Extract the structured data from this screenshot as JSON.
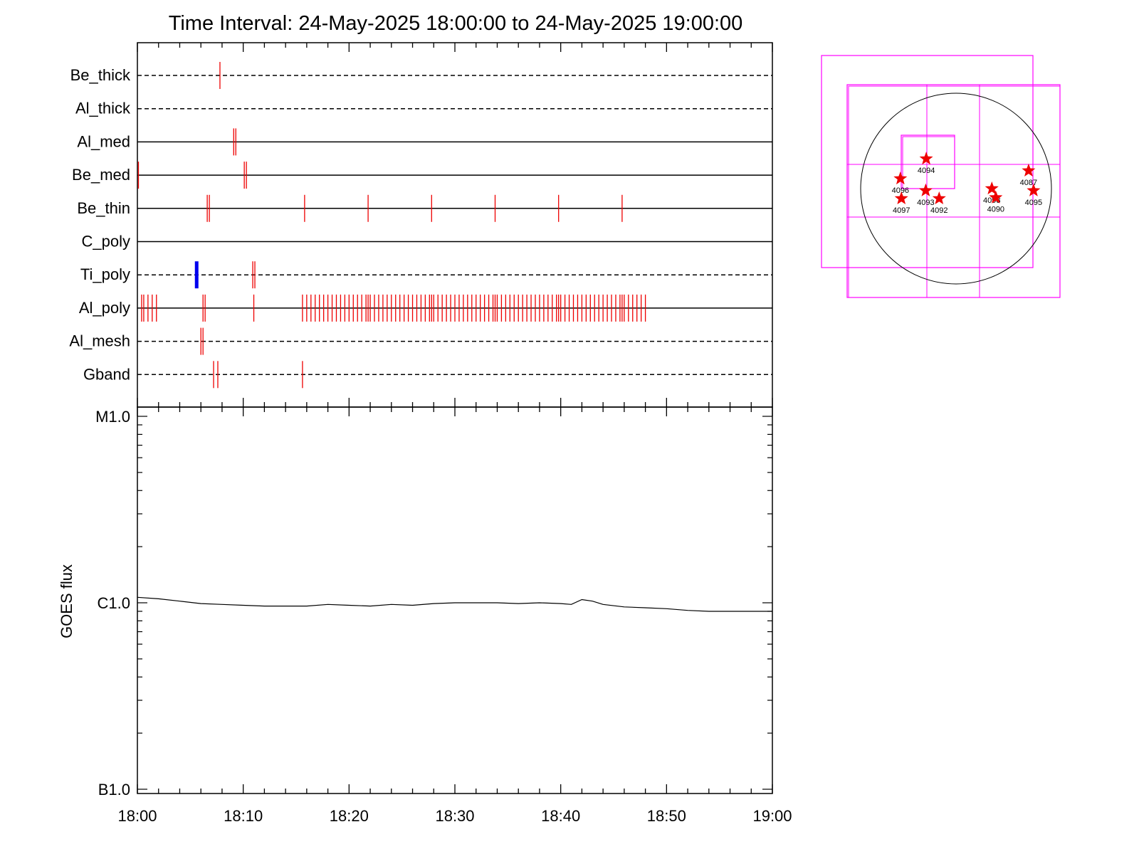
{
  "chart_data": [
    {
      "type": "timeline",
      "title": "Time Interval: 24-May-2025 18:00:00 to 24-May-2025 19:00:00",
      "x_start": "2025-05-24 18:00",
      "x_end": "2025-05-24 19:00",
      "rows": [
        {
          "label": "Be_thick",
          "line": "dashed",
          "events": [
            {
              "t": "18:07.8"
            }
          ]
        },
        {
          "label": "Al_thick",
          "line": "dashed",
          "events": []
        },
        {
          "label": "Al_med",
          "line": "solid",
          "events": [
            {
              "t": "18:09.1"
            },
            {
              "t": "18:09.3"
            }
          ]
        },
        {
          "label": "Be_med",
          "line": "solid",
          "events": [
            {
              "t": "18:00.1"
            },
            {
              "t": "18:10.1"
            },
            {
              "t": "18:10.3"
            }
          ]
        },
        {
          "label": "Be_thin",
          "line": "solid",
          "events": [
            {
              "t": "18:06.6"
            },
            {
              "t": "18:06.8"
            },
            {
              "t": "18:15.8"
            },
            {
              "t": "18:21.8"
            },
            {
              "t": "18:27.8"
            },
            {
              "t": "18:33.8"
            },
            {
              "t": "18:39.8"
            },
            {
              "t": "18:45.8"
            }
          ]
        },
        {
          "label": "C_poly",
          "line": "solid",
          "events": []
        },
        {
          "label": "Ti_poly",
          "line": "dashed",
          "events": [
            {
              "t": "18:05.6",
              "color": "#0000ee",
              "thick": true
            },
            {
              "t": "18:10.9"
            },
            {
              "t": "18:11.1"
            }
          ]
        },
        {
          "label": "Al_poly",
          "line": "solid",
          "events": [
            {
              "t": "18:00.4"
            },
            {
              "t": "18:00.6"
            },
            {
              "t": "18:01.0"
            },
            {
              "t": "18:01.4"
            },
            {
              "t": "18:01.8"
            },
            {
              "t": "18:06.2"
            },
            {
              "t": "18:06.4"
            },
            {
              "t": "18:11.0"
            },
            {
              "t": "18:15.6"
            },
            {
              "t": "18:16.0"
            },
            {
              "t": "18:16.4"
            },
            {
              "t": "18:16.8"
            },
            {
              "t": "18:17.2"
            },
            {
              "t": "18:17.6"
            },
            {
              "t": "18:18.0"
            },
            {
              "t": "18:18.4"
            },
            {
              "t": "18:18.8"
            },
            {
              "t": "18:19.2"
            },
            {
              "t": "18:19.6"
            },
            {
              "t": "18:20.0"
            },
            {
              "t": "18:20.4"
            },
            {
              "t": "18:20.8"
            },
            {
              "t": "18:21.2"
            },
            {
              "t": "18:21.6"
            },
            {
              "t": "18:21.8"
            },
            {
              "t": "18:22.0"
            },
            {
              "t": "18:22.4"
            },
            {
              "t": "18:22.8"
            },
            {
              "t": "18:23.2"
            },
            {
              "t": "18:23.6"
            },
            {
              "t": "18:24.0"
            },
            {
              "t": "18:24.4"
            },
            {
              "t": "18:24.8"
            },
            {
              "t": "18:25.2"
            },
            {
              "t": "18:25.6"
            },
            {
              "t": "18:26.0"
            },
            {
              "t": "18:26.4"
            },
            {
              "t": "18:26.8"
            },
            {
              "t": "18:27.2"
            },
            {
              "t": "18:27.6"
            },
            {
              "t": "18:27.8"
            },
            {
              "t": "18:28.0"
            },
            {
              "t": "18:28.4"
            },
            {
              "t": "18:28.8"
            },
            {
              "t": "18:29.2"
            },
            {
              "t": "18:29.6"
            },
            {
              "t": "18:30.0"
            },
            {
              "t": "18:30.4"
            },
            {
              "t": "18:30.8"
            },
            {
              "t": "18:31.2"
            },
            {
              "t": "18:31.6"
            },
            {
              "t": "18:32.0"
            },
            {
              "t": "18:32.4"
            },
            {
              "t": "18:32.8"
            },
            {
              "t": "18:33.2"
            },
            {
              "t": "18:33.6"
            },
            {
              "t": "18:33.8"
            },
            {
              "t": "18:34.0"
            },
            {
              "t": "18:34.4"
            },
            {
              "t": "18:34.8"
            },
            {
              "t": "18:35.2"
            },
            {
              "t": "18:35.6"
            },
            {
              "t": "18:36.0"
            },
            {
              "t": "18:36.4"
            },
            {
              "t": "18:36.8"
            },
            {
              "t": "18:37.2"
            },
            {
              "t": "18:37.6"
            },
            {
              "t": "18:38.0"
            },
            {
              "t": "18:38.4"
            },
            {
              "t": "18:38.8"
            },
            {
              "t": "18:39.2"
            },
            {
              "t": "18:39.6"
            },
            {
              "t": "18:39.8"
            },
            {
              "t": "18:40.0"
            },
            {
              "t": "18:40.4"
            },
            {
              "t": "18:40.8"
            },
            {
              "t": "18:41.2"
            },
            {
              "t": "18:41.6"
            },
            {
              "t": "18:42.0"
            },
            {
              "t": "18:42.4"
            },
            {
              "t": "18:42.8"
            },
            {
              "t": "18:43.2"
            },
            {
              "t": "18:43.6"
            },
            {
              "t": "18:44.0"
            },
            {
              "t": "18:44.4"
            },
            {
              "t": "18:44.8"
            },
            {
              "t": "18:45.2"
            },
            {
              "t": "18:45.6"
            },
            {
              "t": "18:45.8"
            },
            {
              "t": "18:46.0"
            },
            {
              "t": "18:46.4"
            },
            {
              "t": "18:46.8"
            },
            {
              "t": "18:47.2"
            },
            {
              "t": "18:47.6"
            },
            {
              "t": "18:48.0"
            }
          ]
        },
        {
          "label": "Al_mesh",
          "line": "dashed",
          "events": [
            {
              "t": "18:06.0"
            },
            {
              "t": "18:06.2"
            }
          ]
        },
        {
          "label": "Gband",
          "line": "dashed",
          "events": [
            {
              "t": "18:07.2"
            },
            {
              "t": "18:07.6"
            },
            {
              "t": "18:15.6"
            }
          ]
        }
      ]
    },
    {
      "type": "line",
      "ylabel": "GOES flux",
      "y_scale": "log",
      "ylim": [
        1e-07,
        1e-05
      ],
      "y_ticks": [
        {
          "value": 1e-05,
          "label": "M1.0"
        },
        {
          "value": 1e-06,
          "label": "C1.0"
        },
        {
          "value": 1e-07,
          "label": "B1.0"
        }
      ],
      "x_ticks": [
        "18:00",
        "18:10",
        "18:20",
        "18:30",
        "18:40",
        "18:50",
        "19:00"
      ],
      "series": [
        {
          "color": "#000000",
          "x": [
            "18:00",
            "18:02",
            "18:04",
            "18:06",
            "18:08",
            "18:10",
            "18:12",
            "18:14",
            "18:16",
            "18:18",
            "18:20",
            "18:22",
            "18:24",
            "18:26",
            "18:28",
            "18:30",
            "18:32",
            "18:34",
            "18:36",
            "18:38",
            "18:40",
            "18:41",
            "18:42",
            "18:43",
            "18:44",
            "18:46",
            "18:48",
            "18:50",
            "18:52",
            "18:54",
            "18:56",
            "18:58",
            "19:00"
          ],
          "values": [
            1.07e-06,
            1.05e-06,
            1.02e-06,
            9.9e-07,
            9.8e-07,
            9.7e-07,
            9.6e-07,
            9.6e-07,
            9.6e-07,
            9.8e-07,
            9.7e-07,
            9.6e-07,
            9.8e-07,
            9.7e-07,
            9.9e-07,
            1e-06,
            1e-06,
            1e-06,
            9.9e-07,
            1e-06,
            9.9e-07,
            9.8e-07,
            1.04e-06,
            1.02e-06,
            9.8e-07,
            9.5e-07,
            9.4e-07,
            9.3e-07,
            9.1e-07,
            9e-07,
            9e-07,
            9e-07,
            9e-07
          ]
        }
      ]
    },
    {
      "type": "diagram",
      "regions": [
        {
          "label": "4094",
          "x": -300,
          "y": 300
        },
        {
          "label": "4096",
          "x": -560,
          "y": 100
        },
        {
          "label": "4093",
          "x": -305,
          "y": -20
        },
        {
          "label": "4092",
          "x": -170,
          "y": -100
        },
        {
          "label": "4097",
          "x": -550,
          "y": -100
        },
        {
          "label": "4098",
          "x": 360,
          "y": 0
        },
        {
          "label": "4090",
          "x": 400,
          "y": -90
        },
        {
          "label": "4087",
          "x": 730,
          "y": 180
        },
        {
          "label": "4095",
          "x": 780,
          "y": -20
        }
      ]
    }
  ]
}
